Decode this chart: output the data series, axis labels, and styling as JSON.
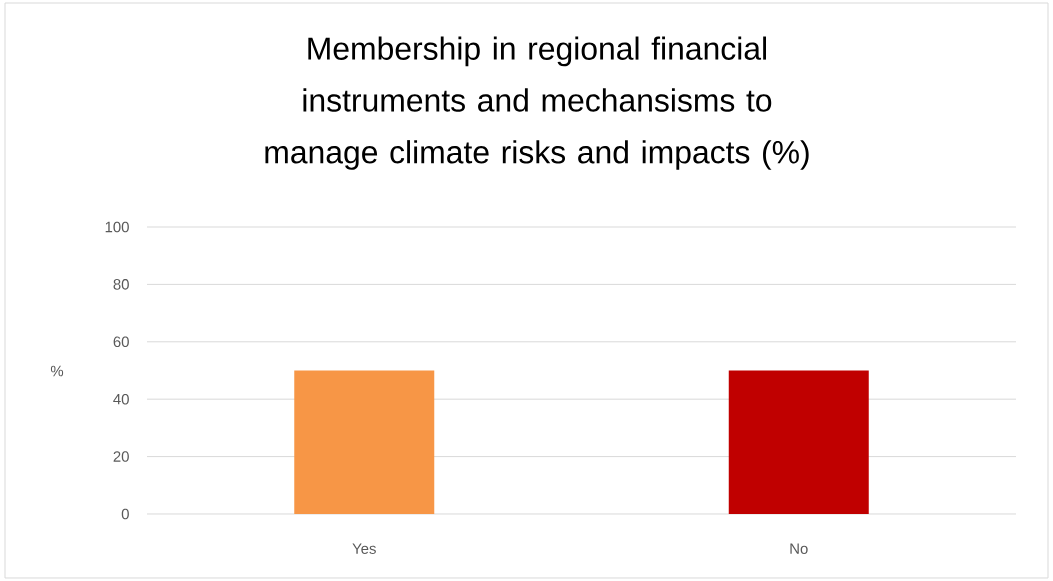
{
  "chart_data": {
    "type": "bar",
    "title": "Membership in regional financial instruments and mechansisms to manage climate risks and impacts (%)",
    "ylabel": "%",
    "categories": [
      "Yes",
      "No"
    ],
    "values": [
      50,
      50
    ],
    "colors": [
      "#f79646",
      "#c00000"
    ],
    "ylim": [
      0,
      100
    ],
    "yticks": [
      0,
      20,
      40,
      60,
      80,
      100
    ],
    "grid": "y"
  }
}
